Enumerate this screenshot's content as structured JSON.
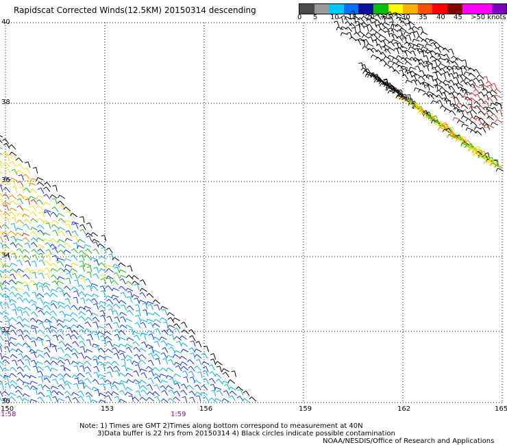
{
  "title": "Rapidscat Corrected Winds(12.5KM) 20150314 descending",
  "legend": {
    "labels": [
      "0",
      "5",
      "10",
      "15",
      "20",
      "25",
      "30",
      "35",
      "40",
      "45",
      ">50 knots"
    ],
    "colors": [
      "#4a4a4a",
      "#9a9a9a",
      "#00c8ff",
      "#0070ff",
      "#1010a0",
      "#00c000",
      "#ffff00",
      "#ffb000",
      "#ff5000",
      "#ff0000",
      "#800000",
      "#ff00ff",
      "#ff00ff",
      "#8000c0"
    ]
  },
  "map": {
    "lon_ticks": [
      "150",
      "153",
      "156",
      "159",
      "162",
      "165"
    ],
    "lat_ticks": [
      "40",
      "38",
      "36",
      "34",
      "32",
      "30"
    ],
    "gridlines": "dotted",
    "swaths": [
      {
        "region": "southwest",
        "dominant_speeds_knots": "10-30"
      },
      {
        "region": "northeast",
        "dominant_speeds_knots": "15-35"
      }
    ]
  },
  "times": [
    "1:58",
    "1:59"
  ],
  "notes": {
    "line1": "Note: 1) Times are GMT 2)Times along bottom correspond to measurement at 40N",
    "line2": "3)Data buffer is 22 hrs from 20150314 4) Black circles indicate possible contamination",
    "line3": "NOAA/NESDIS/Office of Research and Applications"
  }
}
